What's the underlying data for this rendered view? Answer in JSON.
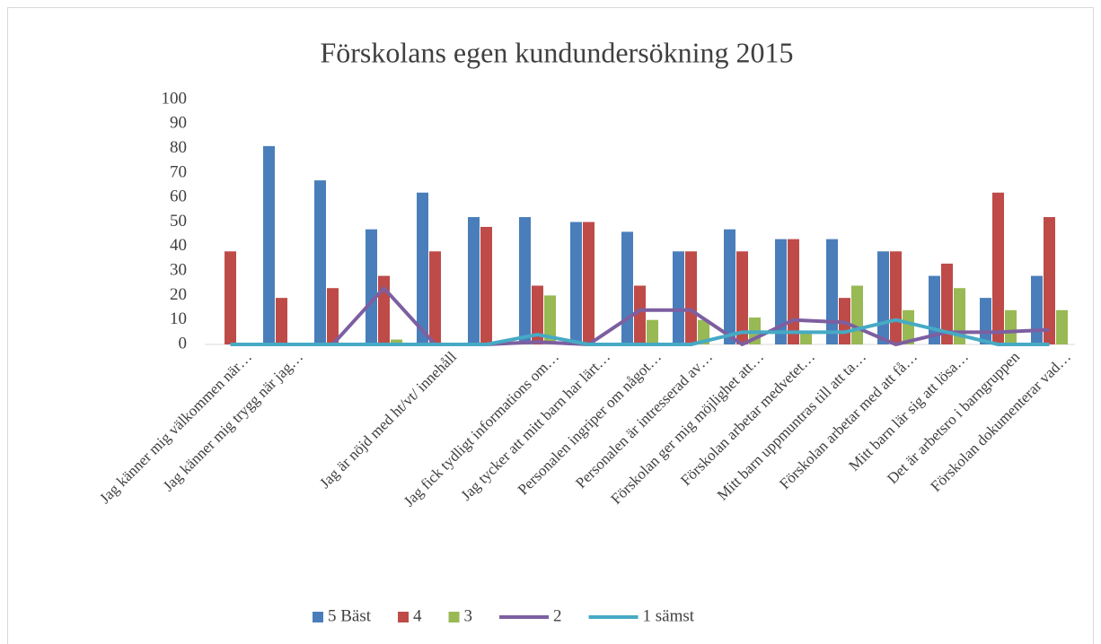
{
  "chart_data": {
    "type": "bar",
    "title": "Förskolans egen kundundersökning 2015",
    "categories": [
      "Jag känner mig välkommen när…",
      "Jag känner mig trygg när jag…",
      null,
      null,
      "Jag är nöjd med ht/vt/ innehåll",
      null,
      "Jag fick tydligt informations om…",
      "Jag tycker att mitt barn har lärt…",
      "Personalen ingriper om något…",
      "Personalen är intresserad av…",
      "Förskolan ger mig möjlighet att…",
      "Förskolan arbetar medvetet…",
      "Mitt barn uppmuntras till att ta…",
      "Förskolan arbetar med att få…",
      "Mitt barn lär sig att lösa…",
      "Det är arbetsro i barngruppen",
      "Förskolan dokumenterar vad…"
    ],
    "series": [
      {
        "name": "5 Bäst",
        "type": "bar",
        "color": "#4a7ebb",
        "values": [
          0,
          81,
          67,
          47,
          62,
          52,
          52,
          50,
          46,
          38,
          47,
          43,
          43,
          38,
          28,
          19,
          28
        ]
      },
      {
        "name": "4",
        "type": "bar",
        "color": "#be4b48",
        "values": [
          38,
          19,
          23,
          28,
          38,
          48,
          24,
          50,
          24,
          38,
          38,
          43,
          19,
          38,
          33,
          62,
          52
        ]
      },
      {
        "name": "3",
        "type": "bar",
        "color": "#98b954",
        "values": [
          0,
          0,
          0,
          2,
          0,
          0,
          20,
          0,
          10,
          10,
          11,
          5,
          24,
          14,
          23,
          14,
          14
        ]
      },
      {
        "name": "2",
        "type": "line",
        "color": "#7d5fa0",
        "values": [
          0,
          0,
          0,
          23,
          0,
          0,
          1,
          0,
          14,
          14,
          0,
          10,
          9,
          0,
          5,
          5,
          6
        ]
      },
      {
        "name": "1 sämst",
        "type": "line",
        "color": "#46aac5",
        "values": [
          0,
          0,
          0,
          0,
          0,
          0,
          4,
          0,
          0,
          0,
          5,
          5,
          5,
          10,
          5,
          0,
          0
        ]
      }
    ],
    "ylim": [
      0,
      100
    ],
    "yticks": [
      0,
      10,
      20,
      30,
      40,
      50,
      60,
      70,
      80,
      90,
      100
    ],
    "grid": false,
    "legend": "bottom"
  }
}
